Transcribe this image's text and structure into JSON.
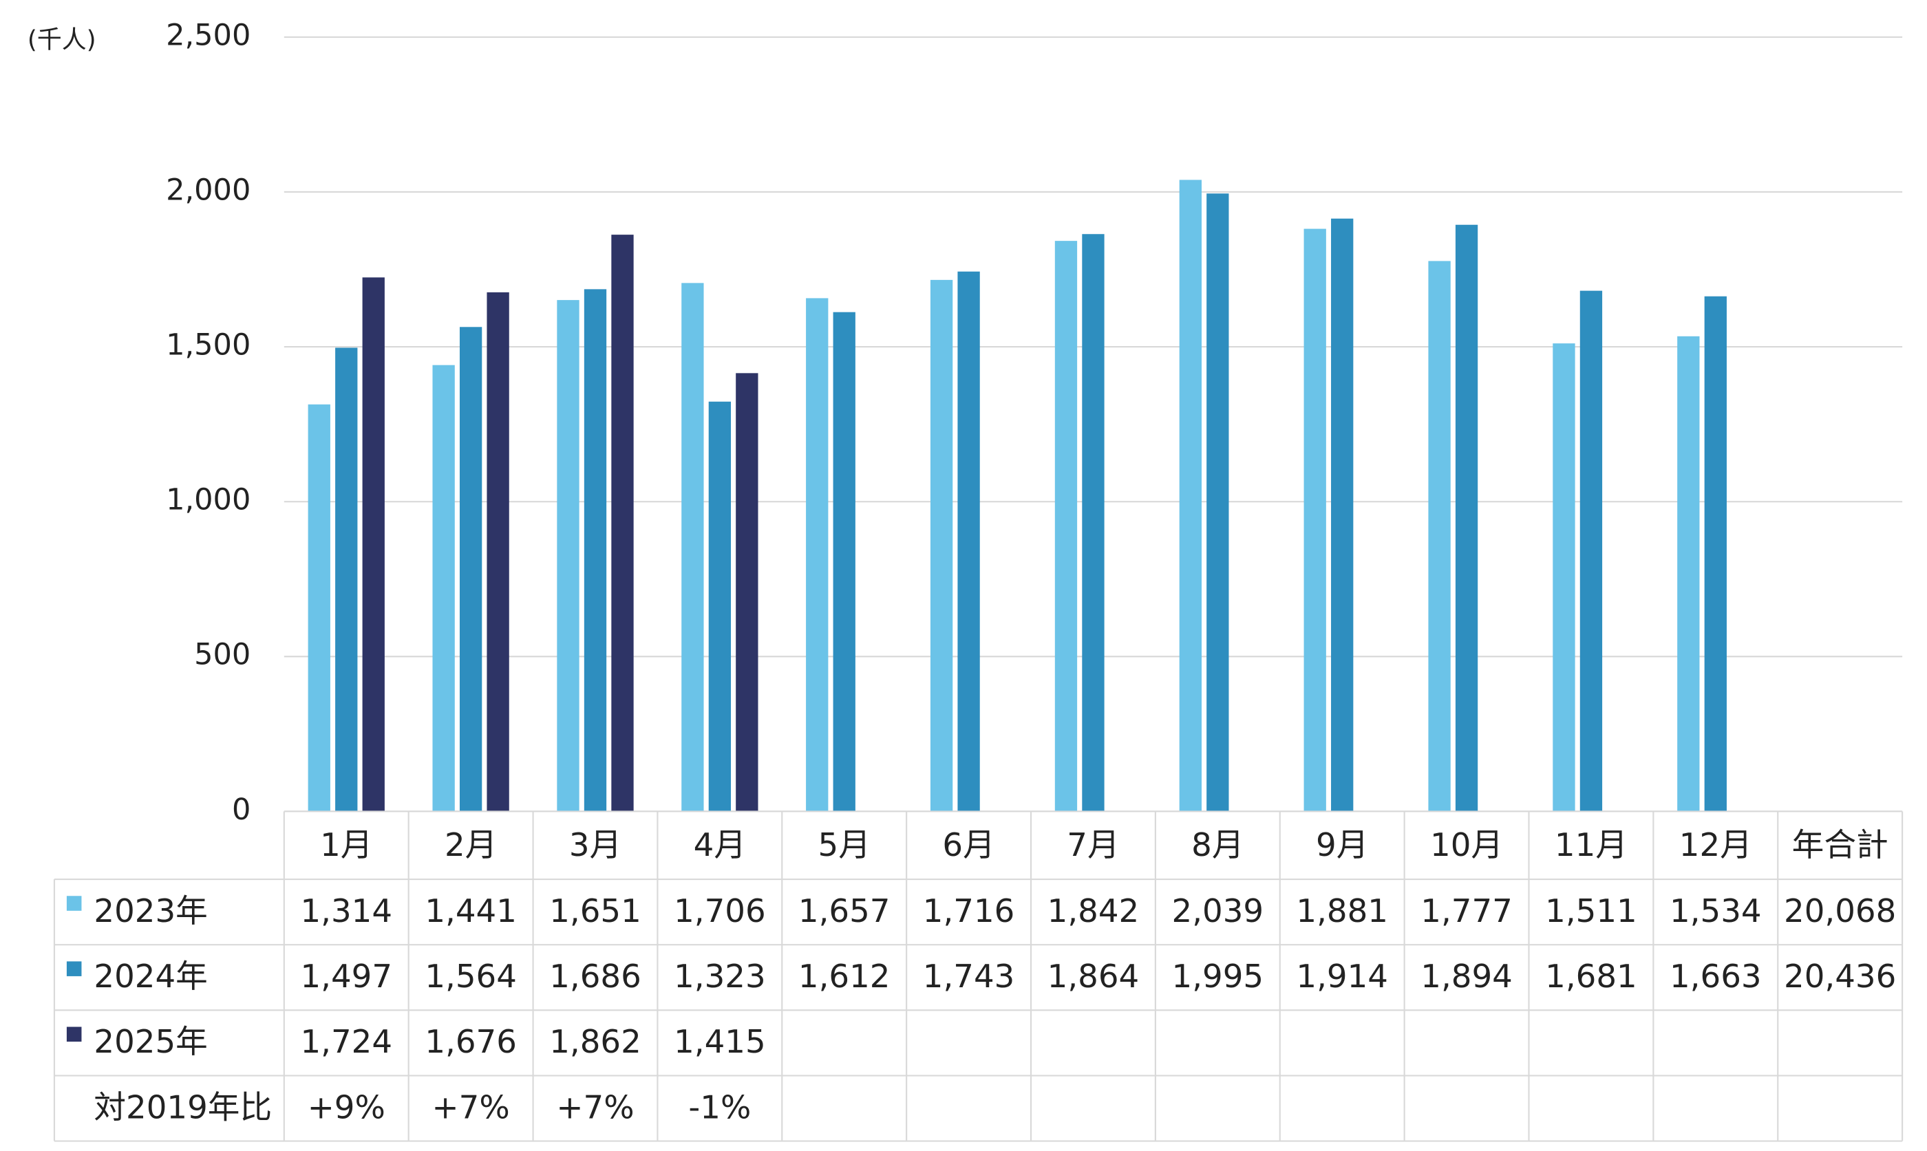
{
  "chart_data": {
    "type": "bar",
    "y_label": "(千人)",
    "categories": [
      "1月",
      "2月",
      "3月",
      "4月",
      "5月",
      "6月",
      "7月",
      "8月",
      "9月",
      "10月",
      "11月",
      "12月"
    ],
    "total_header": "年合計",
    "series": [
      {
        "name": "2023年",
        "color": "#6bc3e8",
        "values": [
          1314,
          1441,
          1651,
          1706,
          1657,
          1716,
          1842,
          2039,
          1881,
          1777,
          1511,
          1534
        ],
        "value_labels": [
          "1,314",
          "1,441",
          "1,651",
          "1,706",
          "1,657",
          "1,716",
          "1,842",
          "2,039",
          "1,881",
          "1,777",
          "1,511",
          "1,534"
        ],
        "total": 20068,
        "total_label": "20,068"
      },
      {
        "name": "2024年",
        "color": "#2e8ebf",
        "values": [
          1497,
          1564,
          1686,
          1323,
          1612,
          1743,
          1864,
          1995,
          1914,
          1894,
          1681,
          1663
        ],
        "value_labels": [
          "1,497",
          "1,564",
          "1,686",
          "1,323",
          "1,612",
          "1,743",
          "1,864",
          "1,995",
          "1,914",
          "1,894",
          "1,681",
          "1,663"
        ],
        "total": 20436,
        "total_label": "20,436"
      },
      {
        "name": "2025年",
        "color": "#2e3466",
        "values": [
          1724,
          1676,
          1862,
          1415,
          null,
          null,
          null,
          null,
          null,
          null,
          null,
          null
        ],
        "value_labels": [
          "1,724",
          "1,676",
          "1,862",
          "1,415",
          null,
          null,
          null,
          null,
          null,
          null,
          null,
          null
        ]
      }
    ],
    "comparison": {
      "name": "対2019年比",
      "values": [
        9,
        7,
        7,
        -1,
        null,
        null,
        null,
        null,
        null,
        null,
        null,
        null
      ],
      "value_labels": [
        "+9%",
        "+7%",
        "+7%",
        "-1%",
        null,
        null,
        null,
        null,
        null,
        null,
        null,
        null
      ]
    },
    "ylim": [
      0,
      2500
    ],
    "yticks": [
      0,
      500,
      {
        "value": 1000,
        "label": "1,000"
      },
      {
        "value": 1500,
        "label": "1,500"
      },
      {
        "value": 2000,
        "label": "2,000"
      },
      {
        "value": 2500,
        "label": "2,500"
      }
    ],
    "grid": true
  }
}
